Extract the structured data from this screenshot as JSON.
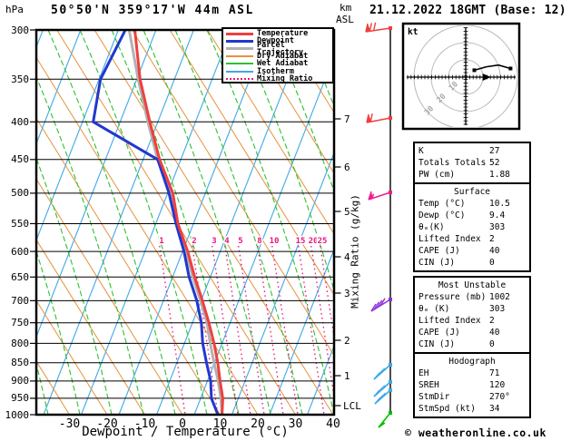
{
  "header": {
    "station_title": "50°50'N 359°17'W 44m ASL",
    "datetime": "21.12.2022 18GMT (Base: 12)"
  },
  "axis_labels": {
    "pressure_unit": "hPa",
    "km_unit": "km",
    "asl_unit": "ASL",
    "x_label": "Dewpoint / Temperature (°C)",
    "right_label": "Mixing Ratio (g/kg)",
    "lcl": "LCL",
    "hodo_unit": "kt"
  },
  "legend": {
    "items": [
      {
        "label": "Temperature",
        "color": "#ef3f3f",
        "style": "thick"
      },
      {
        "label": "Dewpoint",
        "color": "#2038cf",
        "style": "thick"
      },
      {
        "label": "Parcel Trajectory",
        "color": "#b2b2b2",
        "style": "thick"
      },
      {
        "label": "Dry Adiabat",
        "color": "#e6923e",
        "style": "thin"
      },
      {
        "label": "Wet Adiabat",
        "color": "#2fc02f",
        "style": "thin"
      },
      {
        "label": "Isotherm",
        "color": "#3fa9e6",
        "style": "thin"
      },
      {
        "label": "Mixing Ratio",
        "color": "#e6187e",
        "style": "dotted"
      }
    ]
  },
  "tables": {
    "indices": {
      "rows": [
        [
          "K",
          "27"
        ],
        [
          "Totals Totals",
          "52"
        ],
        [
          "PW (cm)",
          "1.88"
        ]
      ]
    },
    "surface": {
      "title": "Surface",
      "rows": [
        [
          "Temp (°C)",
          "10.5"
        ],
        [
          "Dewp (°C)",
          "9.4"
        ],
        [
          "θₑ(K)",
          "303"
        ],
        [
          "Lifted Index",
          "2"
        ],
        [
          "CAPE (J)",
          "40"
        ],
        [
          "CIN (J)",
          "0"
        ]
      ]
    },
    "most_unstable": {
      "title": "Most Unstable",
      "rows": [
        [
          "Pressure (mb)",
          "1002"
        ],
        [
          "θₑ (K)",
          "303"
        ],
        [
          "Lifted Index",
          "2"
        ],
        [
          "CAPE (J)",
          "40"
        ],
        [
          "CIN (J)",
          "0"
        ]
      ]
    },
    "hodograph": {
      "title": "Hodograph",
      "rows": [
        [
          "EH",
          "71"
        ],
        [
          "SREH",
          "120"
        ],
        [
          "StmDir",
          "270°"
        ],
        [
          "StmSpd (kt)",
          "34"
        ]
      ]
    }
  },
  "footer": {
    "credit": "© weatheronline.co.uk"
  },
  "chart_data": {
    "type": "line",
    "subtype": "skew-t-log-p-sounding",
    "title": "50°50'N 359°17'W 44m ASL",
    "valid": "21.12.2022 18GMT (Base: 12)",
    "pressure_hpa": [
      300,
      350,
      400,
      450,
      500,
      550,
      600,
      650,
      700,
      750,
      800,
      850,
      900,
      950,
      1000
    ],
    "series": [
      {
        "name": "Temperature",
        "units": "°C",
        "values": [
          -52.5,
          -46,
          -39,
          -32.5,
          -25.5,
          -21,
          -15.5,
          -11,
          -6.5,
          -2.5,
          1,
          4,
          6.5,
          9,
          10.5
        ]
      },
      {
        "name": "Dewpoint",
        "units": "°C",
        "values": [
          -55,
          -56.5,
          -54,
          -33,
          -26.5,
          -21.5,
          -16.5,
          -12.5,
          -8,
          -4.5,
          -2,
          1,
          4,
          6,
          9.4
        ]
      },
      {
        "name": "Parcel Trajectory",
        "units": "°C",
        "values": [
          -54,
          -46.5,
          -39.5,
          -33,
          -26,
          -21,
          -16,
          -11.5,
          -7,
          -3,
          0,
          3,
          6,
          8.5,
          10.5
        ]
      }
    ],
    "x_axis": {
      "label": "Dewpoint / Temperature (°C)",
      "ticks": [
        -30,
        -20,
        -10,
        0,
        10,
        20,
        30,
        40
      ]
    },
    "y_axis": {
      "label": "hPa",
      "scale": "log",
      "ticks": [
        300,
        350,
        400,
        450,
        500,
        550,
        600,
        650,
        700,
        750,
        800,
        850,
        900,
        950,
        1000
      ]
    },
    "secondary_y_axis": {
      "label": "km ASL",
      "ticks": [
        1,
        2,
        3,
        4,
        5,
        6,
        7
      ],
      "lcl_marker": "LCL"
    },
    "mixing_ratio_gkg": [
      1,
      2,
      3,
      4,
      5,
      8,
      10,
      15,
      20,
      25
    ],
    "wind_barbs": [
      {
        "approx_level_hpa": 300,
        "color": "red"
      },
      {
        "approx_level_hpa": 400,
        "color": "red"
      },
      {
        "approx_level_hpa": 500,
        "color": "pink"
      },
      {
        "approx_level_hpa": 700,
        "color": "purple"
      },
      {
        "approx_level_hpa": 860,
        "color": "cyan"
      },
      {
        "approx_level_hpa": 905,
        "color": "cyan"
      },
      {
        "approx_level_hpa": 925,
        "color": "cyan"
      },
      {
        "approx_level_hpa": 1005,
        "color": "green"
      }
    ],
    "hodograph": {
      "unit": "kt",
      "rings_kt": [
        10,
        20,
        30
      ],
      "trace_uv_kt": [
        [
          5,
          4
        ],
        [
          12,
          6
        ],
        [
          19,
          7
        ],
        [
          26,
          5
        ]
      ],
      "storm_motion_marker_u_kt": 13
    },
    "indices": {
      "K": 27,
      "Totals_Totals": 52,
      "PW_cm": 1.88,
      "surface": {
        "temp_c": 10.5,
        "dewp_c": 9.4,
        "theta_e_k": 303,
        "lifted_index": 2,
        "cape_j": 40,
        "cin_j": 0
      },
      "most_unstable": {
        "pressure_mb": 1002,
        "theta_e_k": 303,
        "lifted_index": 2,
        "cape_j": 40,
        "cin_j": 0
      },
      "hodograph": {
        "EH": 71,
        "SREH": 120,
        "StmDir_deg": 270,
        "StmSpd_kt": 34
      }
    }
  }
}
